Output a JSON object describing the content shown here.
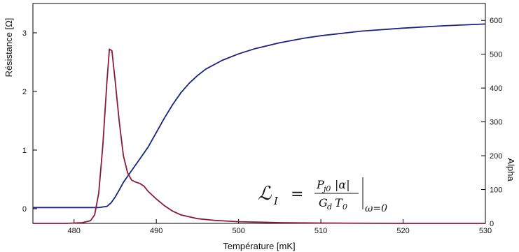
{
  "chart_data": {
    "type": "line",
    "xlabel": "Température [mK]",
    "ylabel_left": "Résistance [Ω]",
    "ylabel_right": "Alpha",
    "xlim": [
      475,
      530
    ],
    "ylim_left": [
      -0.25,
      3.5
    ],
    "ylim_right": [
      0,
      650
    ],
    "x_ticks": [
      480,
      490,
      500,
      510,
      520,
      530
    ],
    "y_ticks_left": [
      0,
      1,
      2,
      3
    ],
    "y_ticks_right": [
      0,
      100,
      200,
      300,
      400,
      500,
      600
    ],
    "grid": false,
    "legend": "none",
    "series": [
      {
        "axis": "left",
        "color": "#1a237e",
        "x": [
          475,
          478,
          481,
          483,
          484,
          484.5,
          485,
          485.5,
          486,
          487,
          488,
          489,
          490,
          491,
          492,
          493,
          494,
          495,
          496,
          498,
          500,
          502,
          505,
          508,
          510,
          515,
          520,
          525,
          530
        ],
        "y": [
          0.02,
          0.02,
          0.02,
          0.02,
          0.04,
          0.1,
          0.2,
          0.32,
          0.45,
          0.65,
          0.85,
          1.05,
          1.3,
          1.55,
          1.78,
          1.98,
          2.14,
          2.27,
          2.38,
          2.53,
          2.64,
          2.73,
          2.83,
          2.91,
          2.95,
          3.03,
          3.08,
          3.12,
          3.15
        ]
      },
      {
        "axis": "right",
        "color": "#8b1a3a",
        "x": [
          475,
          479,
          481,
          482,
          482.5,
          483,
          483.5,
          484,
          484.3,
          484.6,
          485,
          485.5,
          486,
          486.5,
          487,
          487.5,
          488,
          488.5,
          489,
          490,
          491,
          492,
          493,
          495,
          497,
          500,
          505,
          510,
          520,
          530
        ],
        "y": [
          0,
          0,
          2,
          8,
          25,
          90,
          230,
          420,
          515,
          510,
          420,
          300,
          200,
          150,
          128,
          122,
          118,
          110,
          95,
          72,
          52,
          36,
          25,
          14,
          9,
          5,
          2,
          1,
          0,
          0
        ]
      }
    ],
    "annotation": {
      "lhs": "ℒ",
      "lhs_sub": "I",
      "equals": "=",
      "numerator": "P",
      "numerator_sub": "j0",
      "numerator_rest": "|α|",
      "denominator": "G",
      "denominator_sub": "d",
      "denominator_rest": "T",
      "denominator_rest_sub": "0",
      "eval_sub": "ω=0"
    }
  }
}
